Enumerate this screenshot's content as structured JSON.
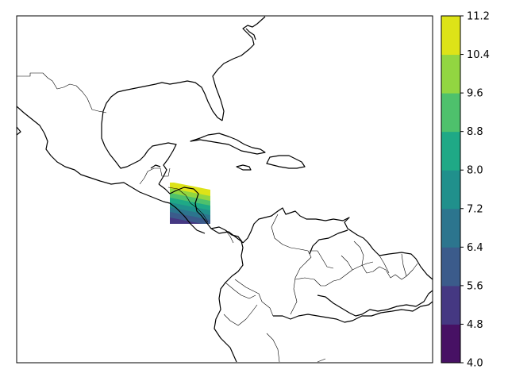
{
  "map": {
    "projection": "plate-carree",
    "extent_lon": [
      -118,
      -58
    ],
    "extent_lat": [
      0,
      33
    ],
    "coastline_color": "#000000",
    "border_color": "#000000"
  },
  "field_patch": {
    "lon_range": [
      -94.5,
      -91
    ],
    "lat_range": [
      12.5,
      16.5
    ],
    "value_min_corner": "south",
    "value_max_corner": "north-west"
  },
  "colorbar": {
    "levels": [
      4.0,
      4.8,
      5.6,
      6.4,
      7.2,
      8.0,
      8.8,
      9.6,
      10.4,
      11.2
    ],
    "tick_labels": [
      "4.0",
      "4.8",
      "5.6",
      "6.4",
      "7.2",
      "8.0",
      "8.8",
      "9.6",
      "10.4",
      "11.2"
    ],
    "colors": [
      "#471164",
      "#453882",
      "#3b5b8b",
      "#2c758e",
      "#20908c",
      "#1fa986",
      "#4ec16c",
      "#92d641",
      "#dde318"
    ],
    "colormap": "viridis"
  }
}
